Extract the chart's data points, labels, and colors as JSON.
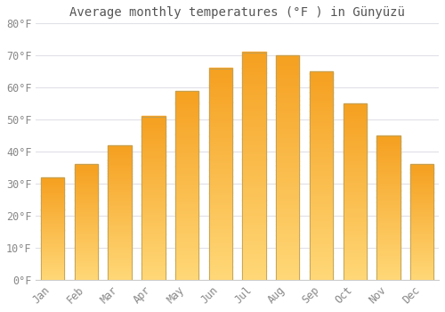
{
  "title": "Average monthly temperatures (°F ) in Günyüzü",
  "months": [
    "Jan",
    "Feb",
    "Mar",
    "Apr",
    "May",
    "Jun",
    "Jul",
    "Aug",
    "Sep",
    "Oct",
    "Nov",
    "Dec"
  ],
  "values": [
    32,
    36,
    42,
    51,
    59,
    66,
    71,
    70,
    65,
    55,
    45,
    36
  ],
  "bar_color_top": "#F5A623",
  "bar_color_bottom": "#FFD878",
  "bar_edge_color": "#b0a000",
  "background_color": "#ffffff",
  "grid_color": "#e0e0e8",
  "ylim": [
    0,
    80
  ],
  "yticks": [
    0,
    10,
    20,
    30,
    40,
    50,
    60,
    70,
    80
  ],
  "title_fontsize": 10,
  "tick_fontsize": 8.5
}
